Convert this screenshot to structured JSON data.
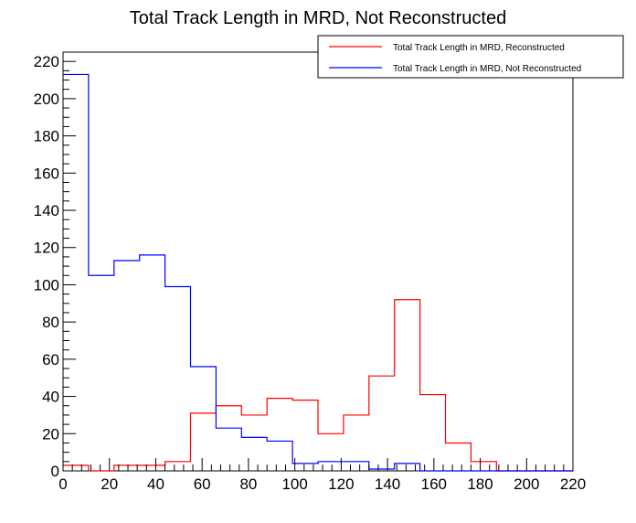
{
  "chart_data": {
    "type": "histogram",
    "title": "Total Track Length in MRD, Not Reconstructed",
    "xlabel": "",
    "ylabel": "",
    "xlim": [
      0,
      220
    ],
    "ylim": [
      0,
      225
    ],
    "xticks": [
      0,
      20,
      40,
      60,
      80,
      100,
      120,
      140,
      160,
      180,
      200,
      220
    ],
    "yticks": [
      0,
      20,
      40,
      60,
      80,
      100,
      120,
      140,
      160,
      180,
      200,
      220
    ],
    "bin_edges": [
      0,
      11,
      22,
      33,
      44,
      55,
      66,
      77,
      88,
      99,
      110,
      121,
      132,
      143,
      154,
      165,
      176,
      187,
      198,
      209,
      220
    ],
    "series": [
      {
        "name": "Total Track Length in MRD, Reconstructed",
        "color": "#ff0000",
        "values": [
          3,
          0,
          3,
          3,
          5,
          31,
          35,
          30,
          39,
          38,
          20,
          30,
          51,
          92,
          41,
          15,
          5,
          0,
          0,
          0
        ]
      },
      {
        "name": "Total Track Length in MRD, Not Reconstructed",
        "color": "#0000ff",
        "values": [
          213,
          105,
          113,
          116,
          99,
          56,
          23,
          18,
          16,
          4,
          5,
          5,
          1,
          4,
          0,
          0,
          0,
          0,
          0,
          0
        ]
      }
    ],
    "legend_position": "top-right",
    "grid": false
  }
}
